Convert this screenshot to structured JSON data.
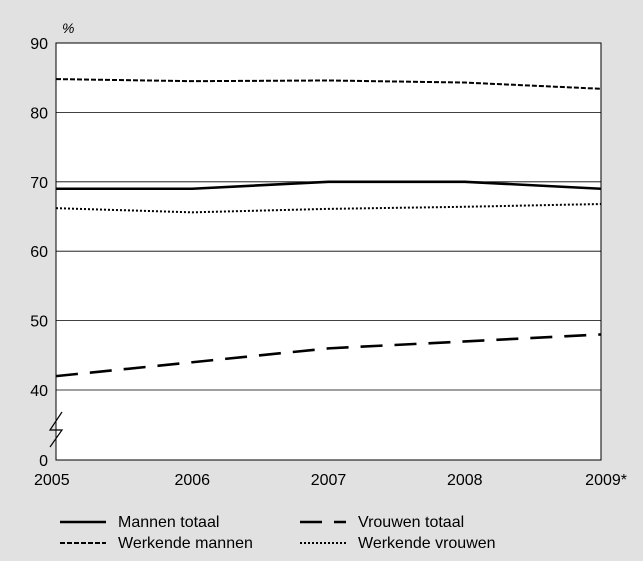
{
  "chart_data": {
    "type": "line",
    "unit_label": "%",
    "x": [
      "2005",
      "2006",
      "2007",
      "2008",
      "2009*"
    ],
    "y_ticks": [
      "0",
      "40",
      "50",
      "60",
      "70",
      "80",
      "90"
    ],
    "axis_break": "between 0 and 40",
    "series": [
      {
        "name": "Mannen totaal",
        "style": "solid",
        "values": [
          69,
          69,
          70,
          70,
          69
        ]
      },
      {
        "name": "Vrouwen totaal",
        "style": "long-dash",
        "values": [
          42,
          44,
          46,
          47,
          48
        ]
      },
      {
        "name": "Werkende mannen",
        "style": "short-dash",
        "values": [
          84.8,
          84.5,
          84.6,
          84.3,
          83.4
        ]
      },
      {
        "name": "Werkende vrouwen",
        "style": "dotted",
        "values": [
          66.2,
          65.6,
          66.1,
          66.4,
          66.8
        ]
      }
    ],
    "legend": {
      "placement": "bottom",
      "columns": 2
    },
    "grid": true,
    "colors": {
      "background": "#e1e1e1",
      "plot": "#ffffff",
      "lines": "#000000"
    }
  }
}
